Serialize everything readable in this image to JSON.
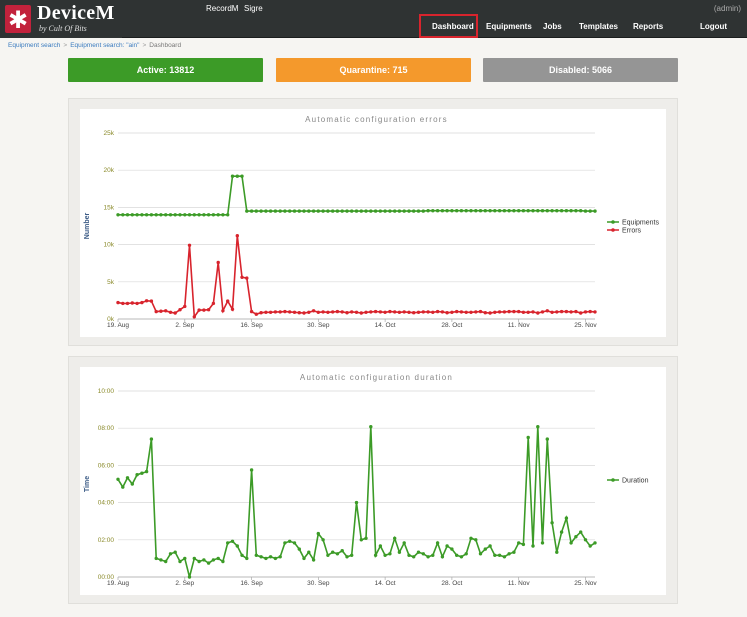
{
  "header": {
    "logo_mark": "✱",
    "app_name": "DeviceM",
    "app_sub": "by Cult Of Bits",
    "top_links": [
      "RecordM",
      "Sigre"
    ],
    "user": "(admin)",
    "nav": [
      "Dashboard",
      "Equipments",
      "Jobs",
      "Templates",
      "Reports",
      "Logout"
    ],
    "active_nav": "Dashboard"
  },
  "breadcrumb": {
    "items": [
      "Equipment search",
      "Equipment search: \"ain\"",
      "Dashboard"
    ],
    "separator": ">"
  },
  "tiles": {
    "active": "Active: 13812",
    "quarantine": "Quarantine: 715",
    "disabled": "Disabled: 5066"
  },
  "colors": {
    "header_bg": "#2f3333",
    "logo_red": "#c2223c",
    "active": "#3c9b27",
    "quarantine": "#f4992c",
    "disabled": "#959595",
    "green_series": "#3c9b27",
    "red_series": "#d8242d",
    "nav_highlight": "#d8242d"
  },
  "chart_data": [
    {
      "type": "line",
      "title": "Automatic configuration errors",
      "ylabel": "Number",
      "ylim": [
        0,
        25000
      ],
      "yticks": [
        "0k",
        "5k",
        "10k",
        "15k",
        "20k",
        "25k"
      ],
      "ytick_values": [
        0,
        5000,
        10000,
        15000,
        20000,
        25000
      ],
      "x_labels": [
        "19. Aug",
        "2. Sep",
        "16. Sep",
        "30. Sep",
        "14. Oct",
        "28. Oct",
        "11. Nov",
        "25. Nov"
      ],
      "x_start": "19. Aug",
      "x_count": 101,
      "legend": "right",
      "series": [
        {
          "name": "Equipments",
          "color": "#3c9b27",
          "values": [
            14000,
            14000,
            14000,
            14000,
            14000,
            14000,
            14000,
            14000,
            14000,
            14000,
            14000,
            14000,
            14000,
            14000,
            14000,
            14000,
            14000,
            14000,
            14000,
            14000,
            14000,
            14000,
            14000,
            14000,
            19200,
            19200,
            19200,
            14500,
            14500,
            14500,
            14500,
            14500,
            14500,
            14500,
            14500,
            14500,
            14500,
            14500,
            14500,
            14500,
            14500,
            14500,
            14500,
            14500,
            14500,
            14500,
            14500,
            14500,
            14500,
            14500,
            14500,
            14500,
            14500,
            14500,
            14500,
            14500,
            14500,
            14500,
            14500,
            14500,
            14500,
            14500,
            14500,
            14500,
            14500,
            14550,
            14550,
            14550,
            14550,
            14550,
            14550,
            14550,
            14550,
            14550,
            14550,
            14550,
            14550,
            14550,
            14550,
            14550,
            14550,
            14550,
            14550,
            14550,
            14550,
            14550,
            14550,
            14550,
            14550,
            14550,
            14550,
            14550,
            14550,
            14550,
            14550,
            14550,
            14550,
            14550,
            14500,
            14500,
            14500
          ]
        },
        {
          "name": "Errors",
          "color": "#d8242d",
          "values": [
            2200,
            2100,
            2100,
            2150,
            2100,
            2200,
            2450,
            2400,
            1000,
            1050,
            1100,
            900,
            800,
            1250,
            1700,
            9900,
            300,
            1200,
            1200,
            1250,
            2100,
            7600,
            1100,
            2400,
            1300,
            11200,
            5600,
            5500,
            1000,
            650,
            850,
            900,
            900,
            950,
            950,
            1000,
            950,
            900,
            850,
            800,
            900,
            1100,
            900,
            950,
            900,
            950,
            1000,
            950,
            850,
            950,
            900,
            800,
            900,
            950,
            1000,
            950,
            900,
            1000,
            950,
            900,
            950,
            900,
            850,
            900,
            950,
            950,
            900,
            1000,
            950,
            850,
            900,
            1000,
            950,
            900,
            900,
            950,
            1000,
            850,
            800,
            900,
            950,
            950,
            1000,
            1000,
            1000,
            900,
            900,
            950,
            800,
            950,
            1100,
            900,
            950,
            1000,
            1000,
            950,
            1000,
            800,
            950,
            1000,
            950
          ]
        }
      ]
    },
    {
      "type": "line",
      "title": "Automatic configuration duration",
      "ylabel": "Time",
      "yticks": [
        "00:00",
        "02:00",
        "04:00",
        "06:00",
        "08:00",
        "10:00"
      ],
      "ytick_values": [
        0,
        120,
        240,
        360,
        480,
        600
      ],
      "ylim": [
        0,
        600
      ],
      "x_labels": [
        "19. Aug",
        "2. Sep",
        "16. Sep",
        "30. Sep",
        "14. Oct",
        "28. Oct",
        "11. Nov",
        "25. Nov"
      ],
      "x_count": 101,
      "legend": "right",
      "series": [
        {
          "name": "Duration",
          "color": "#3c9b27",
          "values": [
            315,
            290,
            320,
            300,
            330,
            335,
            340,
            445,
            60,
            55,
            50,
            75,
            80,
            50,
            60,
            0,
            60,
            50,
            55,
            45,
            55,
            60,
            50,
            110,
            115,
            100,
            70,
            60,
            345,
            70,
            65,
            60,
            65,
            60,
            65,
            110,
            115,
            110,
            90,
            60,
            80,
            55,
            140,
            120,
            70,
            80,
            75,
            85,
            65,
            70,
            240,
            120,
            125,
            485,
            70,
            100,
            70,
            75,
            125,
            80,
            110,
            70,
            65,
            80,
            75,
            65,
            70,
            110,
            65,
            100,
            90,
            70,
            65,
            75,
            125,
            120,
            75,
            90,
            100,
            70,
            70,
            65,
            75,
            80,
            110,
            105,
            450,
            100,
            485,
            110,
            445,
            175,
            80,
            145,
            190,
            110,
            130,
            145,
            120,
            100,
            110
          ]
        }
      ]
    }
  ]
}
